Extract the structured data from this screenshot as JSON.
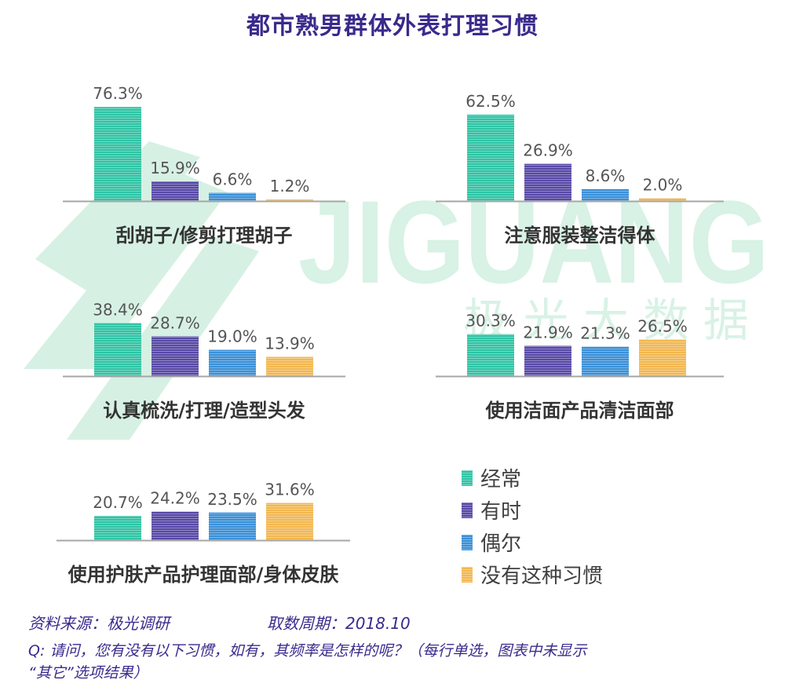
{
  "title": "都市熟男群体外表打理习惯",
  "watermark": {
    "brand": "JIGUANG",
    "cn": "极 光 大 数 据",
    "color": "#cfeedd"
  },
  "legend": [
    {
      "label": "经常",
      "color": "#2fc3a4"
    },
    {
      "label": "有时",
      "color": "#5748a6"
    },
    {
      "label": "偶尔",
      "color": "#3a8fd6"
    },
    {
      "label": "没有这种习惯",
      "color": "#f2b750"
    }
  ],
  "chart_data": [
    {
      "type": "bar",
      "title": "刮胡子/修剪打理胡子",
      "categories": [
        "经常",
        "有时",
        "偶尔",
        "没有这种习惯"
      ],
      "values": [
        76.3,
        15.9,
        6.6,
        1.2
      ],
      "value_labels": [
        "76.3%",
        "15.9%",
        "6.6%",
        "1.2%"
      ]
    },
    {
      "type": "bar",
      "title": "注意服装整洁得体",
      "categories": [
        "经常",
        "有时",
        "偶尔",
        "没有这种习惯"
      ],
      "values": [
        62.5,
        26.9,
        8.6,
        2.0
      ],
      "value_labels": [
        "62.5%",
        "26.9%",
        "8.6%",
        "2.0%"
      ]
    },
    {
      "type": "bar",
      "title": "认真梳洗/打理/造型头发",
      "categories": [
        "经常",
        "有时",
        "偶尔",
        "没有这种习惯"
      ],
      "values": [
        38.4,
        28.7,
        19.0,
        13.9
      ],
      "value_labels": [
        "38.4%",
        "28.7%",
        "19.0%",
        "13.9%"
      ]
    },
    {
      "type": "bar",
      "title": "使用洁面产品清洁面部",
      "categories": [
        "经常",
        "有时",
        "偶尔",
        "没有这种习惯"
      ],
      "values": [
        30.3,
        21.9,
        21.3,
        26.5
      ],
      "value_labels": [
        "30.3%",
        "21.9%",
        "21.3%",
        "26.5%"
      ]
    },
    {
      "type": "bar",
      "title": "使用护肤产品护理面部/身体皮肤",
      "categories": [
        "经常",
        "有时",
        "偶尔",
        "没有这种习惯"
      ],
      "values": [
        20.7,
        24.2,
        23.5,
        31.6
      ],
      "value_labels": [
        "20.7%",
        "24.2%",
        "23.5%",
        "31.6%"
      ]
    }
  ],
  "footer": {
    "source": "资料来源：极光调研",
    "period": "取数周期：2018.10",
    "question": "Q: 请问，您有没有以下习惯，如有，其频率是怎样的呢？（每行单选，图表中未显示",
    "question_cont": "“其它”选项结果）"
  }
}
